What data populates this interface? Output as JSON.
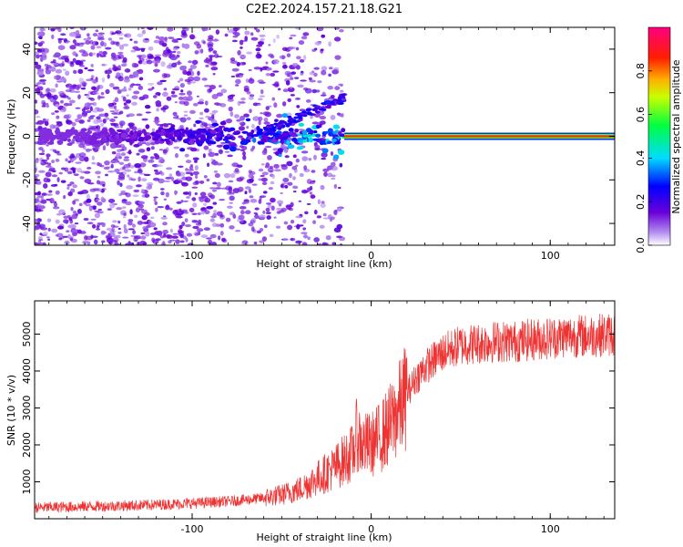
{
  "title": "C2E2.2024.157.21.18.G21",
  "chart_data": [
    {
      "type": "heatmap",
      "xlabel": "Height of straight line (km)",
      "ylabel": "Frequency (Hz)",
      "xlim": [
        -188,
        136
      ],
      "ylim": [
        -50,
        50
      ],
      "xticks": [
        -100,
        0,
        100
      ],
      "yticks": [
        -40,
        -20,
        0,
        20,
        40
      ],
      "colorbar": {
        "label": "Normalized spectral amplitude",
        "range": [
          0,
          1
        ],
        "ticks": [
          0.0,
          0.2,
          0.4,
          0.6,
          0.8
        ]
      },
      "features": {
        "carrier_line": {
          "x": [
            -15,
            136
          ],
          "frequency_hz": 0,
          "amplitude": 0.85
        },
        "scatter_region_x": [
          -188,
          -15
        ],
        "scatter_frequency_spread_hz": [
          -50,
          50
        ]
      },
      "grid": false
    },
    {
      "type": "line",
      "xlabel": "Height of straight line (km)",
      "ylabel": "SNR (10 * v/v)",
      "xlim": [
        -188,
        136
      ],
      "ylim": [
        0,
        5900
      ],
      "xticks": [
        -100,
        0,
        100
      ],
      "yticks": [
        1000,
        2000,
        3000,
        4000,
        5000
      ],
      "series": [
        {
          "color": "#ee3333",
          "x": [
            -188,
            -160,
            -140,
            -120,
            -100,
            -80,
            -60,
            -50,
            -40,
            -35,
            -30,
            -25,
            -20,
            -15,
            -10,
            -8,
            -5,
            0,
            5,
            10,
            15,
            20,
            25,
            30,
            35,
            40,
            45,
            50,
            60,
            70,
            80,
            90,
            100,
            110,
            120,
            136
          ],
          "y": [
            300,
            330,
            350,
            380,
            420,
            470,
            560,
            650,
            800,
            950,
            1100,
            1250,
            1400,
            1600,
            1800,
            2300,
            2000,
            2000,
            2200,
            2500,
            2900,
            3400,
            3800,
            4100,
            4300,
            4500,
            4600,
            4700,
            4750,
            4800,
            4800,
            4850,
            4900,
            4950,
            4950,
            5000
          ]
        }
      ],
      "grid": false
    }
  ]
}
